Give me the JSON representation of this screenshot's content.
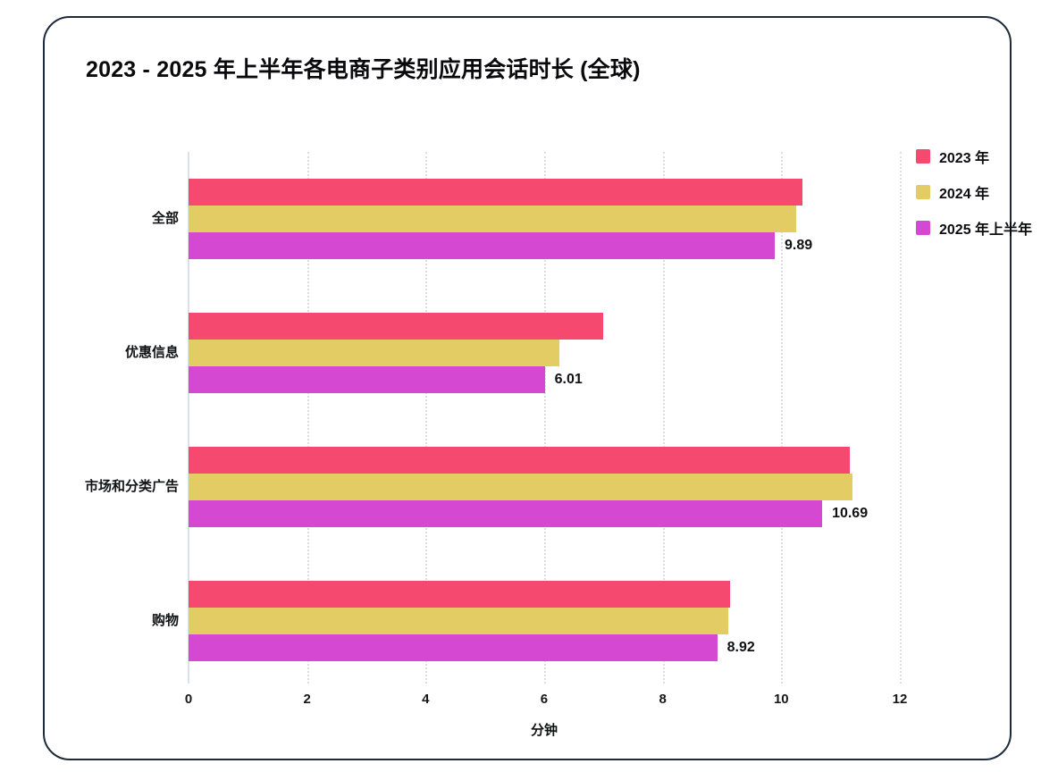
{
  "chart_data": {
    "type": "bar",
    "orientation": "horizontal",
    "title": "2023 - 2025 年上半年各电商子类别应用会话时长 (全球)",
    "xlabel": "分钟",
    "xlim": [
      0,
      12
    ],
    "x_ticks": [
      0,
      2,
      4,
      6,
      8,
      10,
      12
    ],
    "grid": "vertical-dotted",
    "legend_position": "top-right",
    "categories": [
      "全部",
      "优惠信息",
      "市场和分类广告",
      "购物"
    ],
    "series": [
      {
        "name": "2023 年",
        "color": "#F6496F",
        "values": [
          10.35,
          7.0,
          11.15,
          9.14
        ],
        "show_labels": false
      },
      {
        "name": "2024 年",
        "color": "#E2CC63",
        "values": [
          10.25,
          6.25,
          11.2,
          9.1
        ],
        "show_labels": false
      },
      {
        "name": "2025 年上半年",
        "color": "#D549D2",
        "values": [
          9.89,
          6.01,
          10.69,
          8.92
        ],
        "show_labels": true
      }
    ],
    "data_labels": [
      "9.89",
      "6.01",
      "10.69",
      "8.92"
    ]
  }
}
